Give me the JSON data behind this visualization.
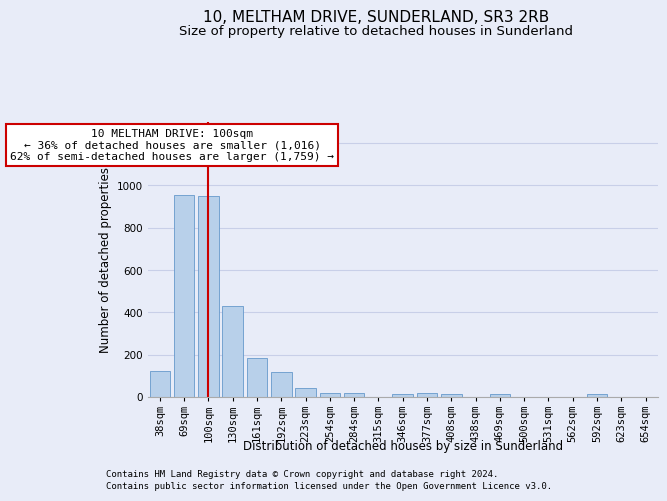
{
  "title": "10, MELTHAM DRIVE, SUNDERLAND, SR3 2RB",
  "subtitle": "Size of property relative to detached houses in Sunderland",
  "xlabel": "Distribution of detached houses by size in Sunderland",
  "ylabel": "Number of detached properties",
  "categories": [
    "38sqm",
    "69sqm",
    "100sqm",
    "130sqm",
    "161sqm",
    "192sqm",
    "223sqm",
    "254sqm",
    "284sqm",
    "315sqm",
    "346sqm",
    "377sqm",
    "408sqm",
    "438sqm",
    "469sqm",
    "500sqm",
    "531sqm",
    "562sqm",
    "592sqm",
    "623sqm",
    "654sqm"
  ],
  "values": [
    125,
    955,
    950,
    430,
    183,
    120,
    42,
    20,
    20,
    0,
    15,
    18,
    12,
    0,
    12,
    0,
    0,
    0,
    12,
    0,
    0
  ],
  "bar_color": "#b8d0ea",
  "bar_edgecolor": "#6699cc",
  "highlight_index": 2,
  "highlight_line_color": "#cc0000",
  "ylim": [
    0,
    1300
  ],
  "yticks": [
    0,
    200,
    400,
    600,
    800,
    1000,
    1200
  ],
  "annotation_text": "10 MELTHAM DRIVE: 100sqm\n← 36% of detached houses are smaller (1,016)\n62% of semi-detached houses are larger (1,759) →",
  "annotation_box_color": "#cc0000",
  "footer1": "Contains HM Land Registry data © Crown copyright and database right 2024.",
  "footer2": "Contains public sector information licensed under the Open Government Licence v3.0.",
  "background_color": "#e8ecf8",
  "grid_color": "#c8cfe8",
  "title_fontsize": 11,
  "subtitle_fontsize": 9.5,
  "axis_label_fontsize": 8.5,
  "tick_fontsize": 7.5,
  "footer_fontsize": 6.5,
  "annot_fontsize": 8
}
